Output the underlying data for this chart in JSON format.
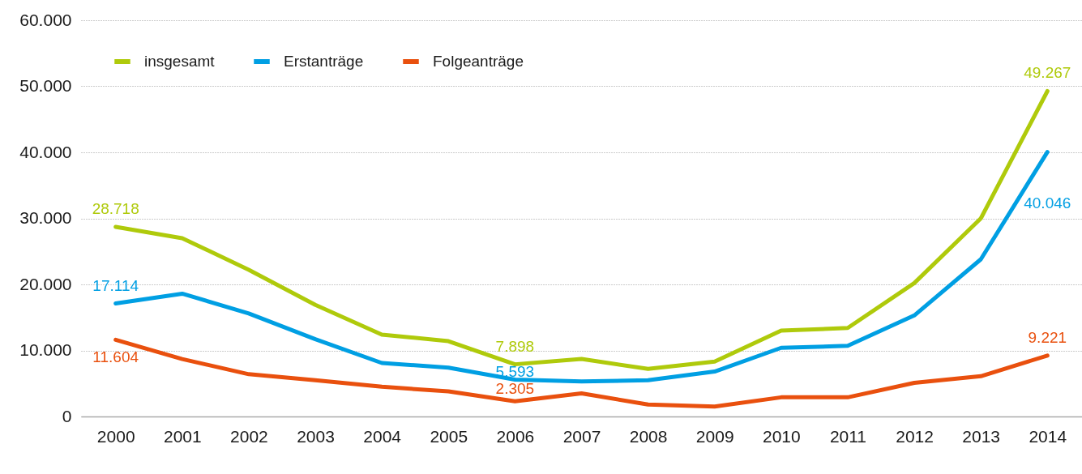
{
  "chart_data": {
    "type": "line",
    "categories": [
      "2000",
      "2001",
      "2002",
      "2003",
      "2004",
      "2005",
      "2006",
      "2007",
      "2008",
      "2009",
      "2010",
      "2011",
      "2012",
      "2013",
      "2014"
    ],
    "series": [
      {
        "name": "insgesamt",
        "color": "#afca0b",
        "values": [
          28718,
          27000,
          22200,
          16900,
          12400,
          11400,
          7898,
          8700,
          7200,
          8300,
          13000,
          13400,
          20200,
          30000,
          49267
        ],
        "value_labels": [
          "28.718",
          null,
          null,
          null,
          null,
          null,
          "7.898",
          null,
          null,
          null,
          null,
          null,
          null,
          null,
          "49.267"
        ]
      },
      {
        "name": "Erstanträge",
        "color": "#009fe3",
        "values": [
          17114,
          18600,
          15600,
          11700,
          8100,
          7400,
          5593,
          5300,
          5500,
          6800,
          10400,
          10700,
          15300,
          23800,
          40046
        ],
        "value_labels": [
          "17.114",
          null,
          null,
          null,
          null,
          null,
          "5.593",
          null,
          null,
          null,
          null,
          null,
          null,
          null,
          "40.046"
        ]
      },
      {
        "name": "Folgeanträge",
        "color": "#e9500e",
        "values": [
          11604,
          8700,
          6400,
          5500,
          4500,
          3800,
          2305,
          3500,
          1800,
          1500,
          2900,
          2900,
          5100,
          6100,
          9221
        ],
        "value_labels": [
          "11.604",
          null,
          null,
          null,
          null,
          null,
          "2.305",
          null,
          null,
          null,
          null,
          null,
          null,
          null,
          "9.221"
        ]
      }
    ],
    "ylim": [
      0,
      60000
    ],
    "yticks": [
      0,
      {
        "value": 10000,
        "label": "10.000"
      },
      {
        "value": 20000,
        "label": "20.000"
      },
      {
        "value": 30000,
        "label": "30.000"
      },
      {
        "value": 40000,
        "label": "40.000"
      },
      {
        "value": 50000,
        "label": "50.000"
      },
      {
        "value": 60000,
        "label": "60.000"
      }
    ],
    "grid": "y",
    "legend": "top left",
    "line_style": "solid"
  }
}
